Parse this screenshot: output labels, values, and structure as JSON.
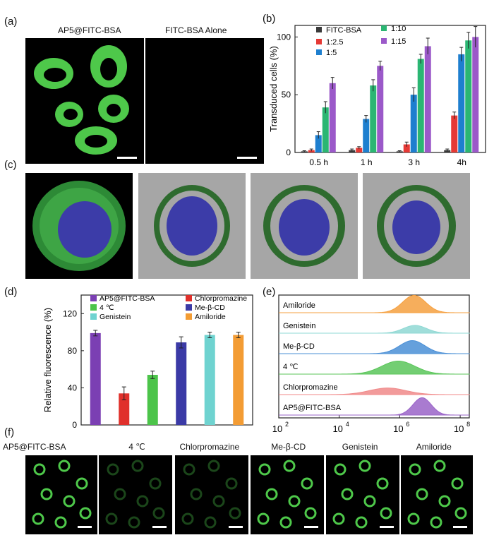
{
  "panel_labels": {
    "a": "(a)",
    "b": "(b)",
    "c": "(c)",
    "d": "(d)",
    "e": "(e)",
    "f": "(f)"
  },
  "panel_a": {
    "titles": [
      "AP5@FITC-BSA",
      "FITC-BSA Alone"
    ]
  },
  "panel_f": {
    "titles": [
      "AP5@FITC-BSA",
      "4 ℃",
      "Chlorpromazine",
      "Me-β-CD",
      "Genistein",
      "Amiloride"
    ]
  },
  "colors": {
    "fitc_green": "#4ec84a",
    "nucleus_blue": "#3c3ca8",
    "render_bg": "#a6a6a6"
  },
  "chart_data": [
    {
      "id": "b",
      "type": "bar",
      "ylabel": "Transduced cells (%)",
      "xlabel": "",
      "ylim": [
        0,
        110
      ],
      "yticks": [
        0,
        50,
        100
      ],
      "categories": [
        "0.5 h",
        "1 h",
        "3 h",
        "4h"
      ],
      "legend_position": "top",
      "series": [
        {
          "name": "FITC-BSA",
          "color": "#3a3a3a",
          "values": [
            1,
            2,
            1,
            2
          ],
          "errors": [
            0.5,
            1,
            0.5,
            1
          ]
        },
        {
          "name": "1:2.5",
          "color": "#e53935",
          "values": [
            2,
            4,
            7,
            32
          ],
          "errors": [
            1,
            1,
            2,
            3
          ]
        },
        {
          "name": "1:5",
          "color": "#1e7fcf",
          "values": [
            15,
            29,
            50,
            85
          ],
          "errors": [
            3,
            3,
            6,
            6
          ]
        },
        {
          "name": "1:10",
          "color": "#2bb673",
          "values": [
            39,
            58,
            81,
            97
          ],
          "errors": [
            5,
            5,
            4,
            7
          ]
        },
        {
          "name": "1:15",
          "color": "#9b59c9",
          "values": [
            60,
            75,
            92,
            100
          ],
          "errors": [
            5,
            4,
            7,
            9
          ]
        }
      ]
    },
    {
      "id": "d",
      "type": "bar",
      "ylabel": "Relative fluorescence (%)",
      "xlabel": "",
      "ylim": [
        0,
        140
      ],
      "yticks": [
        0,
        40,
        80,
        120
      ],
      "categories": [
        "AP5@FITC-BSA",
        "Chlorpromazine",
        "4 ℃",
        "Me-β-CD",
        "Genistein",
        "Amiloride"
      ],
      "series": [
        {
          "name": "",
          "values": [
            99,
            34,
            54,
            89,
            97,
            97
          ],
          "errors": [
            3,
            7,
            4,
            6,
            3,
            3
          ],
          "colors": [
            "#7b3fb3",
            "#e0302b",
            "#4cc44a",
            "#3b3aa6",
            "#6fd3d0",
            "#f39c34"
          ]
        }
      ],
      "legend_position": "top",
      "legend": [
        {
          "name": "AP5@FITC-BSA",
          "color": "#7b3fb3"
        },
        {
          "name": "Chlorpromazine",
          "color": "#e0302b"
        },
        {
          "name": "4 ℃",
          "color": "#4cc44a"
        },
        {
          "name": "Me-β-CD",
          "color": "#3b3aa6"
        },
        {
          "name": "Genistein",
          "color": "#6fd3d0"
        },
        {
          "name": "Amiloride",
          "color": "#f39c34"
        }
      ]
    },
    {
      "id": "e",
      "type": "area",
      "xlabel": "",
      "ylabel": "",
      "xscale": "log",
      "xticks": [
        "10",
        "10",
        "10",
        "10"
      ],
      "xtick_exponents": [
        "2",
        "4",
        "6",
        "8"
      ],
      "xlim": [
        100,
        200000000
      ],
      "series": [
        {
          "name": "Amiloride",
          "color": "#f5a040",
          "peak": 3000000,
          "width": 0.38,
          "height": 1.0
        },
        {
          "name": "Genistein",
          "color": "#8fd8d4",
          "peak": 3200000,
          "width": 0.38,
          "height": 0.45
        },
        {
          "name": "Me-β-CD",
          "color": "#4a8fd6",
          "peak": 2600000,
          "width": 0.42,
          "height": 0.75
        },
        {
          "name": "4 ℃",
          "color": "#5bc65a",
          "peak": 900000,
          "width": 0.55,
          "height": 0.75
        },
        {
          "name": "Chlorpromazine",
          "color": "#f08a8a",
          "peak": 400000,
          "width": 0.6,
          "height": 0.38
        },
        {
          "name": "AP5@FITC-BSA",
          "color": "#9a64c8",
          "peak": 5500000,
          "width": 0.3,
          "height": 1.0
        }
      ]
    }
  ]
}
